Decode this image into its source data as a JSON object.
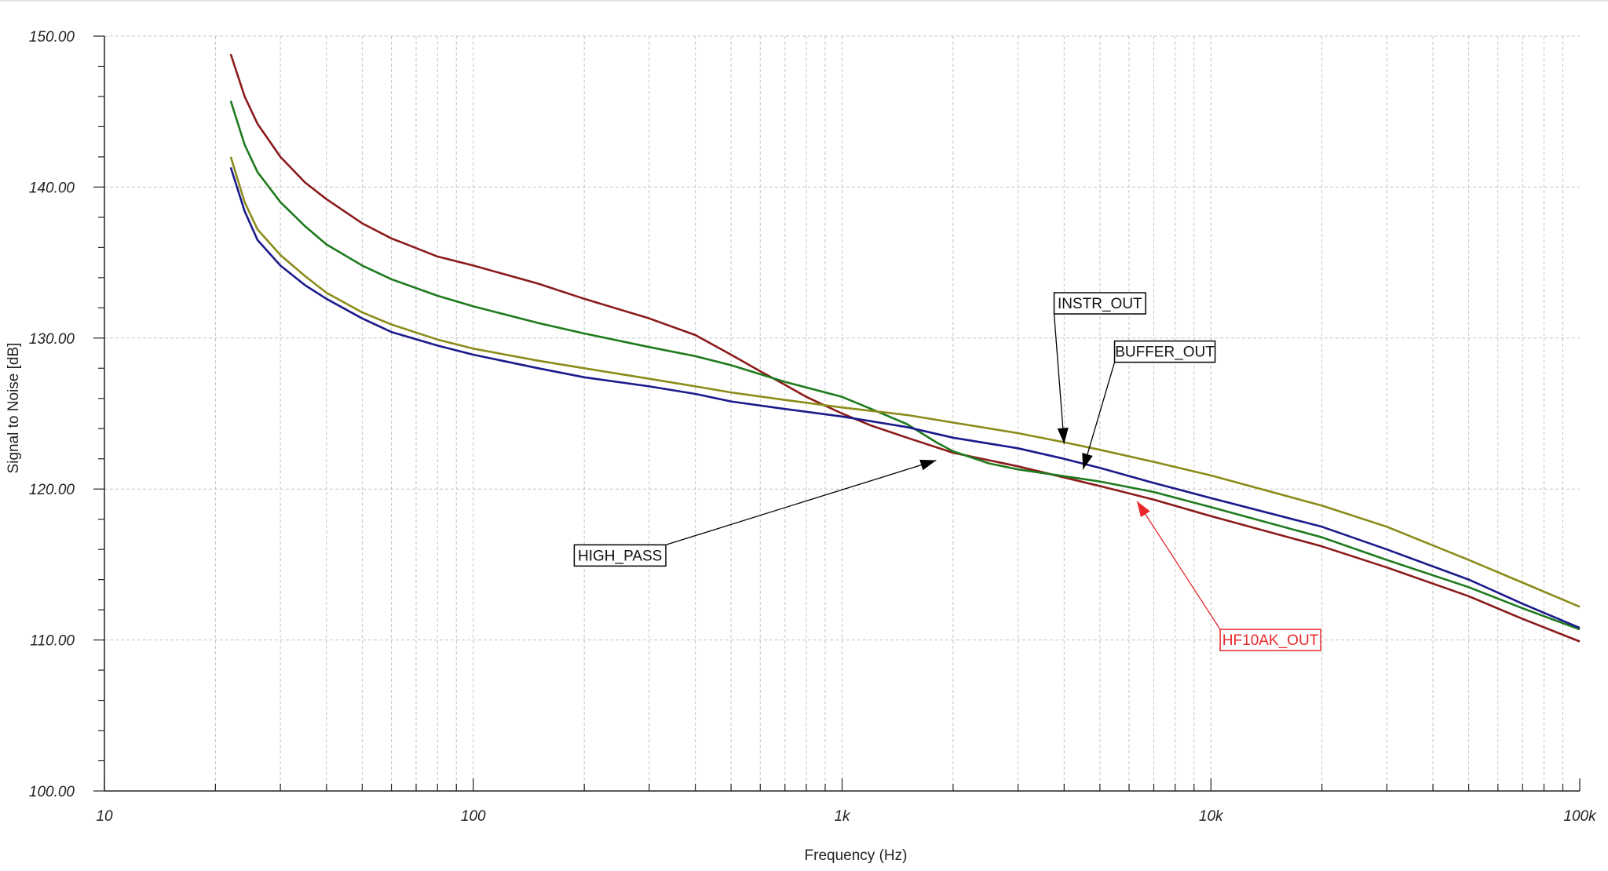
{
  "chart_data": {
    "type": "line",
    "title": "",
    "xlabel": "Frequency (Hz)",
    "ylabel": "Signal to Noise [dB]",
    "x_scale": "log",
    "xlim": [
      10,
      100000
    ],
    "ylim": [
      100,
      150
    ],
    "grid": true,
    "x_tick_labels": [
      {
        "value": 10,
        "label": "10"
      },
      {
        "value": 100,
        "label": "100"
      },
      {
        "value": 1000,
        "label": "1k"
      },
      {
        "value": 10000,
        "label": "10k"
      },
      {
        "value": 100000,
        "label": "100k"
      }
    ],
    "y_tick_labels": [
      {
        "value": 100,
        "label": "100.00"
      },
      {
        "value": 110,
        "label": "110.00"
      },
      {
        "value": 120,
        "label": "120.00"
      },
      {
        "value": 130,
        "label": "130.00"
      },
      {
        "value": 140,
        "label": "140.00"
      },
      {
        "value": 150,
        "label": "150.00"
      }
    ],
    "series": [
      {
        "name": "HIGH_PASS",
        "color": "#8b1a1a",
        "points": [
          [
            22,
            148.8
          ],
          [
            24,
            146
          ],
          [
            26,
            144.2
          ],
          [
            30,
            142
          ],
          [
            35,
            140.3
          ],
          [
            40,
            139.2
          ],
          [
            50,
            137.6
          ],
          [
            60,
            136.6
          ],
          [
            80,
            135.4
          ],
          [
            100,
            134.8
          ],
          [
            150,
            133.6
          ],
          [
            200,
            132.6
          ],
          [
            300,
            131.3
          ],
          [
            400,
            130.2
          ],
          [
            500,
            128.9
          ],
          [
            600,
            127.8
          ],
          [
            700,
            126.9
          ],
          [
            800,
            126.1
          ],
          [
            1000,
            125
          ],
          [
            1200,
            124.2
          ],
          [
            1500,
            123.4
          ],
          [
            2000,
            122.4
          ],
          [
            3000,
            121.5
          ],
          [
            5000,
            120.2
          ],
          [
            7000,
            119.3
          ],
          [
            10000,
            118.2
          ],
          [
            20000,
            116.2
          ],
          [
            30000,
            114.8
          ],
          [
            50000,
            112.9
          ],
          [
            70000,
            111.4
          ],
          [
            100000,
            109.9
          ]
        ]
      },
      {
        "name": "HF10AK_OUT",
        "color": "#1e7a1e",
        "points": [
          [
            22,
            145.7
          ],
          [
            24,
            142.8
          ],
          [
            26,
            141
          ],
          [
            30,
            139
          ],
          [
            35,
            137.4
          ],
          [
            40,
            136.2
          ],
          [
            50,
            134.8
          ],
          [
            60,
            133.9
          ],
          [
            80,
            132.8
          ],
          [
            100,
            132.1
          ],
          [
            150,
            131
          ],
          [
            200,
            130.3
          ],
          [
            300,
            129.4
          ],
          [
            400,
            128.8
          ],
          [
            500,
            128.2
          ],
          [
            700,
            127.1
          ],
          [
            1000,
            126.1
          ],
          [
            1200,
            125.3
          ],
          [
            1500,
            124.3
          ],
          [
            1800,
            123.1
          ],
          [
            2000,
            122.5
          ],
          [
            2500,
            121.7
          ],
          [
            3000,
            121.3
          ],
          [
            5000,
            120.5
          ],
          [
            7000,
            119.8
          ],
          [
            10000,
            118.8
          ],
          [
            20000,
            116.8
          ],
          [
            30000,
            115.3
          ],
          [
            50000,
            113.5
          ],
          [
            70000,
            112.1
          ],
          [
            100000,
            110.7
          ]
        ]
      },
      {
        "name": "INSTR_OUT",
        "color": "#8b8b1a",
        "points": [
          [
            22,
            142
          ],
          [
            24,
            139
          ],
          [
            26,
            137.2
          ],
          [
            30,
            135.5
          ],
          [
            35,
            134.1
          ],
          [
            40,
            133
          ],
          [
            50,
            131.7
          ],
          [
            60,
            130.9
          ],
          [
            80,
            129.9
          ],
          [
            100,
            129.3
          ],
          [
            150,
            128.5
          ],
          [
            200,
            128
          ],
          [
            300,
            127.3
          ],
          [
            400,
            126.8
          ],
          [
            500,
            126.4
          ],
          [
            700,
            125.9
          ],
          [
            1000,
            125.4
          ],
          [
            1500,
            124.9
          ],
          [
            2000,
            124.4
          ],
          [
            3000,
            123.7
          ],
          [
            4000,
            123.1
          ],
          [
            5000,
            122.6
          ],
          [
            7000,
            121.8
          ],
          [
            10000,
            120.9
          ],
          [
            20000,
            118.9
          ],
          [
            30000,
            117.5
          ],
          [
            50000,
            115.3
          ],
          [
            70000,
            113.8
          ],
          [
            100000,
            112.2
          ]
        ]
      },
      {
        "name": "BUFFER_OUT",
        "color": "#1a1a8b",
        "points": [
          [
            22,
            141.3
          ],
          [
            24,
            138.4
          ],
          [
            26,
            136.5
          ],
          [
            30,
            134.8
          ],
          [
            35,
            133.5
          ],
          [
            40,
            132.6
          ],
          [
            50,
            131.3
          ],
          [
            60,
            130.4
          ],
          [
            80,
            129.5
          ],
          [
            100,
            128.9
          ],
          [
            150,
            128
          ],
          [
            200,
            127.4
          ],
          [
            300,
            126.8
          ],
          [
            400,
            126.3
          ],
          [
            500,
            125.8
          ],
          [
            700,
            125.3
          ],
          [
            1000,
            124.8
          ],
          [
            1500,
            124.1
          ],
          [
            2000,
            123.4
          ],
          [
            3000,
            122.7
          ],
          [
            4000,
            122
          ],
          [
            5000,
            121.4
          ],
          [
            7000,
            120.4
          ],
          [
            10000,
            119.4
          ],
          [
            20000,
            117.5
          ],
          [
            30000,
            116
          ],
          [
            50000,
            114
          ],
          [
            70000,
            112.4
          ],
          [
            100000,
            110.8
          ]
        ]
      }
    ],
    "annotations": [
      {
        "label": "INSTR_OUT",
        "series": "INSTR_OUT",
        "target_x": 4000,
        "target_y": 123,
        "box_x": 5000,
        "box_y": 132.3,
        "color": "#000000"
      },
      {
        "label": "BUFFER_OUT",
        "series": "BUFFER_OUT",
        "target_x": 4500,
        "target_y": 121.3,
        "box_x": 7500,
        "box_y": 129.1,
        "color": "#000000"
      },
      {
        "label": "HIGH_PASS",
        "series": "HIGH_PASS",
        "target_x": 1800,
        "target_y": 121.9,
        "box_x": 250,
        "box_y": 115.6,
        "color": "#000000"
      },
      {
        "label": "HF10AK_OUT",
        "series": "HF10AK_OUT",
        "target_x": 6300,
        "target_y": 119.2,
        "box_x": 14500,
        "box_y": 110,
        "color": "#e8282b"
      }
    ]
  }
}
